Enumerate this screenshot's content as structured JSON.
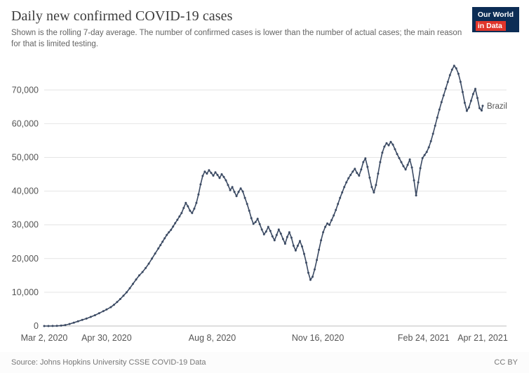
{
  "header": {
    "title": "Daily new confirmed COVID-19 cases",
    "subtitle": "Shown is the rolling 7-day average. The number of confirmed cases is lower than the number of actual cases; the main reason for that is limited testing.",
    "logo": {
      "line1": "Our World",
      "line2": "in Data",
      "bg": "#0c2d55",
      "accent": "#e0352b"
    }
  },
  "footer": {
    "source": "Source: Johns Hopkins University CSSE COVID-19 Data",
    "license": "CC BY"
  },
  "chart_data": {
    "type": "line",
    "title": "Daily new confirmed COVID-19 cases",
    "xlabel": "",
    "ylabel": "",
    "grid": true,
    "end_label": "Brazil",
    "x_domain_days": [
      0,
      415
    ],
    "x_ticks": [
      {
        "day": 0,
        "label": "Mar 2, 2020"
      },
      {
        "day": 59,
        "label": "Apr 30, 2020"
      },
      {
        "day": 159,
        "label": "Aug 8, 2020"
      },
      {
        "day": 259,
        "label": "Nov 16, 2020"
      },
      {
        "day": 359,
        "label": "Feb 24, 2021"
      },
      {
        "day": 415,
        "label": "Apr 21, 2021"
      }
    ],
    "y_ticks": [
      0,
      10000,
      20000,
      30000,
      40000,
      50000,
      60000,
      70000
    ],
    "ylim": [
      0,
      79000
    ],
    "series": [
      {
        "name": "Brazil",
        "color": "#3b4a63",
        "points": [
          [
            0,
            0
          ],
          [
            4,
            5
          ],
          [
            8,
            15
          ],
          [
            12,
            40
          ],
          [
            16,
            120
          ],
          [
            20,
            300
          ],
          [
            24,
            600
          ],
          [
            28,
            1000
          ],
          [
            32,
            1400
          ],
          [
            36,
            1800
          ],
          [
            40,
            2200
          ],
          [
            44,
            2700
          ],
          [
            48,
            3200
          ],
          [
            52,
            3800
          ],
          [
            56,
            4400
          ],
          [
            59,
            4900
          ],
          [
            63,
            5600
          ],
          [
            66,
            6300
          ],
          [
            69,
            7100
          ],
          [
            72,
            8000
          ],
          [
            75,
            9000
          ],
          [
            78,
            10000
          ],
          [
            81,
            11200
          ],
          [
            84,
            12500
          ],
          [
            87,
            13800
          ],
          [
            90,
            15000
          ],
          [
            93,
            16000
          ],
          [
            96,
            17200
          ],
          [
            99,
            18500
          ],
          [
            102,
            20000
          ],
          [
            105,
            21500
          ],
          [
            108,
            23000
          ],
          [
            110,
            24000
          ],
          [
            112,
            25000
          ],
          [
            114,
            26000
          ],
          [
            116,
            27000
          ],
          [
            118,
            27800
          ],
          [
            120,
            28500
          ],
          [
            122,
            29500
          ],
          [
            124,
            30500
          ],
          [
            126,
            31500
          ],
          [
            128,
            32500
          ],
          [
            130,
            33500
          ],
          [
            132,
            35000
          ],
          [
            134,
            36500
          ],
          [
            136,
            35500
          ],
          [
            138,
            34200
          ],
          [
            140,
            33500
          ],
          [
            142,
            34800
          ],
          [
            144,
            36500
          ],
          [
            146,
            39000
          ],
          [
            148,
            42000
          ],
          [
            150,
            44500
          ],
          [
            152,
            45800
          ],
          [
            154,
            45200
          ],
          [
            156,
            46200
          ],
          [
            158,
            45400
          ],
          [
            160,
            44600
          ],
          [
            162,
            45600
          ],
          [
            164,
            44800
          ],
          [
            166,
            43900
          ],
          [
            168,
            45000
          ],
          [
            170,
            44200
          ],
          [
            172,
            43200
          ],
          [
            174,
            41800
          ],
          [
            176,
            40300
          ],
          [
            178,
            41200
          ],
          [
            180,
            39800
          ],
          [
            182,
            38500
          ],
          [
            184,
            39800
          ],
          [
            186,
            40800
          ],
          [
            188,
            39900
          ],
          [
            190,
            38000
          ],
          [
            192,
            36200
          ],
          [
            194,
            34200
          ],
          [
            196,
            32000
          ],
          [
            198,
            30300
          ],
          [
            200,
            30800
          ],
          [
            202,
            31800
          ],
          [
            204,
            30200
          ],
          [
            206,
            28600
          ],
          [
            208,
            27200
          ],
          [
            210,
            28000
          ],
          [
            212,
            29400
          ],
          [
            214,
            28200
          ],
          [
            216,
            26600
          ],
          [
            218,
            25400
          ],
          [
            220,
            27000
          ],
          [
            222,
            28600
          ],
          [
            224,
            27400
          ],
          [
            226,
            25800
          ],
          [
            228,
            24400
          ],
          [
            230,
            26400
          ],
          [
            232,
            27800
          ],
          [
            234,
            26200
          ],
          [
            236,
            23800
          ],
          [
            238,
            22400
          ],
          [
            240,
            23800
          ],
          [
            242,
            25200
          ],
          [
            244,
            23600
          ],
          [
            246,
            21400
          ],
          [
            248,
            18800
          ],
          [
            250,
            15800
          ],
          [
            252,
            13700
          ],
          [
            254,
            14600
          ],
          [
            256,
            16800
          ],
          [
            258,
            19600
          ],
          [
            260,
            22600
          ],
          [
            262,
            25400
          ],
          [
            264,
            27800
          ],
          [
            266,
            29400
          ],
          [
            268,
            30400
          ],
          [
            270,
            30000
          ],
          [
            272,
            31400
          ],
          [
            274,
            32800
          ],
          [
            276,
            34400
          ],
          [
            278,
            36200
          ],
          [
            280,
            38000
          ],
          [
            282,
            39600
          ],
          [
            284,
            41200
          ],
          [
            286,
            42600
          ],
          [
            288,
            43800
          ],
          [
            290,
            44800
          ],
          [
            292,
            45800
          ],
          [
            294,
            46600
          ],
          [
            296,
            45400
          ],
          [
            298,
            44600
          ],
          [
            300,
            46400
          ],
          [
            302,
            48600
          ],
          [
            304,
            49700
          ],
          [
            306,
            47200
          ],
          [
            308,
            44000
          ],
          [
            310,
            41200
          ],
          [
            312,
            39600
          ],
          [
            314,
            41800
          ],
          [
            316,
            45200
          ],
          [
            318,
            48600
          ],
          [
            320,
            51400
          ],
          [
            322,
            53200
          ],
          [
            324,
            54200
          ],
          [
            326,
            53600
          ],
          [
            328,
            54600
          ],
          [
            330,
            53800
          ],
          [
            332,
            52400
          ],
          [
            334,
            51000
          ],
          [
            336,
            49800
          ],
          [
            338,
            48600
          ],
          [
            340,
            47400
          ],
          [
            342,
            46400
          ],
          [
            344,
            47800
          ],
          [
            346,
            49400
          ],
          [
            348,
            47000
          ],
          [
            350,
            43200
          ],
          [
            352,
            38700
          ],
          [
            354,
            42600
          ],
          [
            356,
            46800
          ],
          [
            358,
            49800
          ],
          [
            360,
            50700
          ],
          [
            362,
            51600
          ],
          [
            364,
            53000
          ],
          [
            366,
            54800
          ],
          [
            368,
            57000
          ],
          [
            370,
            59400
          ],
          [
            372,
            61800
          ],
          [
            374,
            64200
          ],
          [
            376,
            66400
          ],
          [
            378,
            68400
          ],
          [
            380,
            70400
          ],
          [
            382,
            72400
          ],
          [
            384,
            74400
          ],
          [
            386,
            76000
          ],
          [
            388,
            77200
          ],
          [
            390,
            76400
          ],
          [
            392,
            74800
          ],
          [
            394,
            72400
          ],
          [
            396,
            69400
          ],
          [
            398,
            66200
          ],
          [
            400,
            63800
          ],
          [
            402,
            64800
          ],
          [
            404,
            66800
          ],
          [
            406,
            68800
          ],
          [
            408,
            70300
          ],
          [
            410,
            67600
          ],
          [
            412,
            64600
          ],
          [
            414,
            63900
          ],
          [
            415,
            65300
          ]
        ]
      }
    ]
  }
}
